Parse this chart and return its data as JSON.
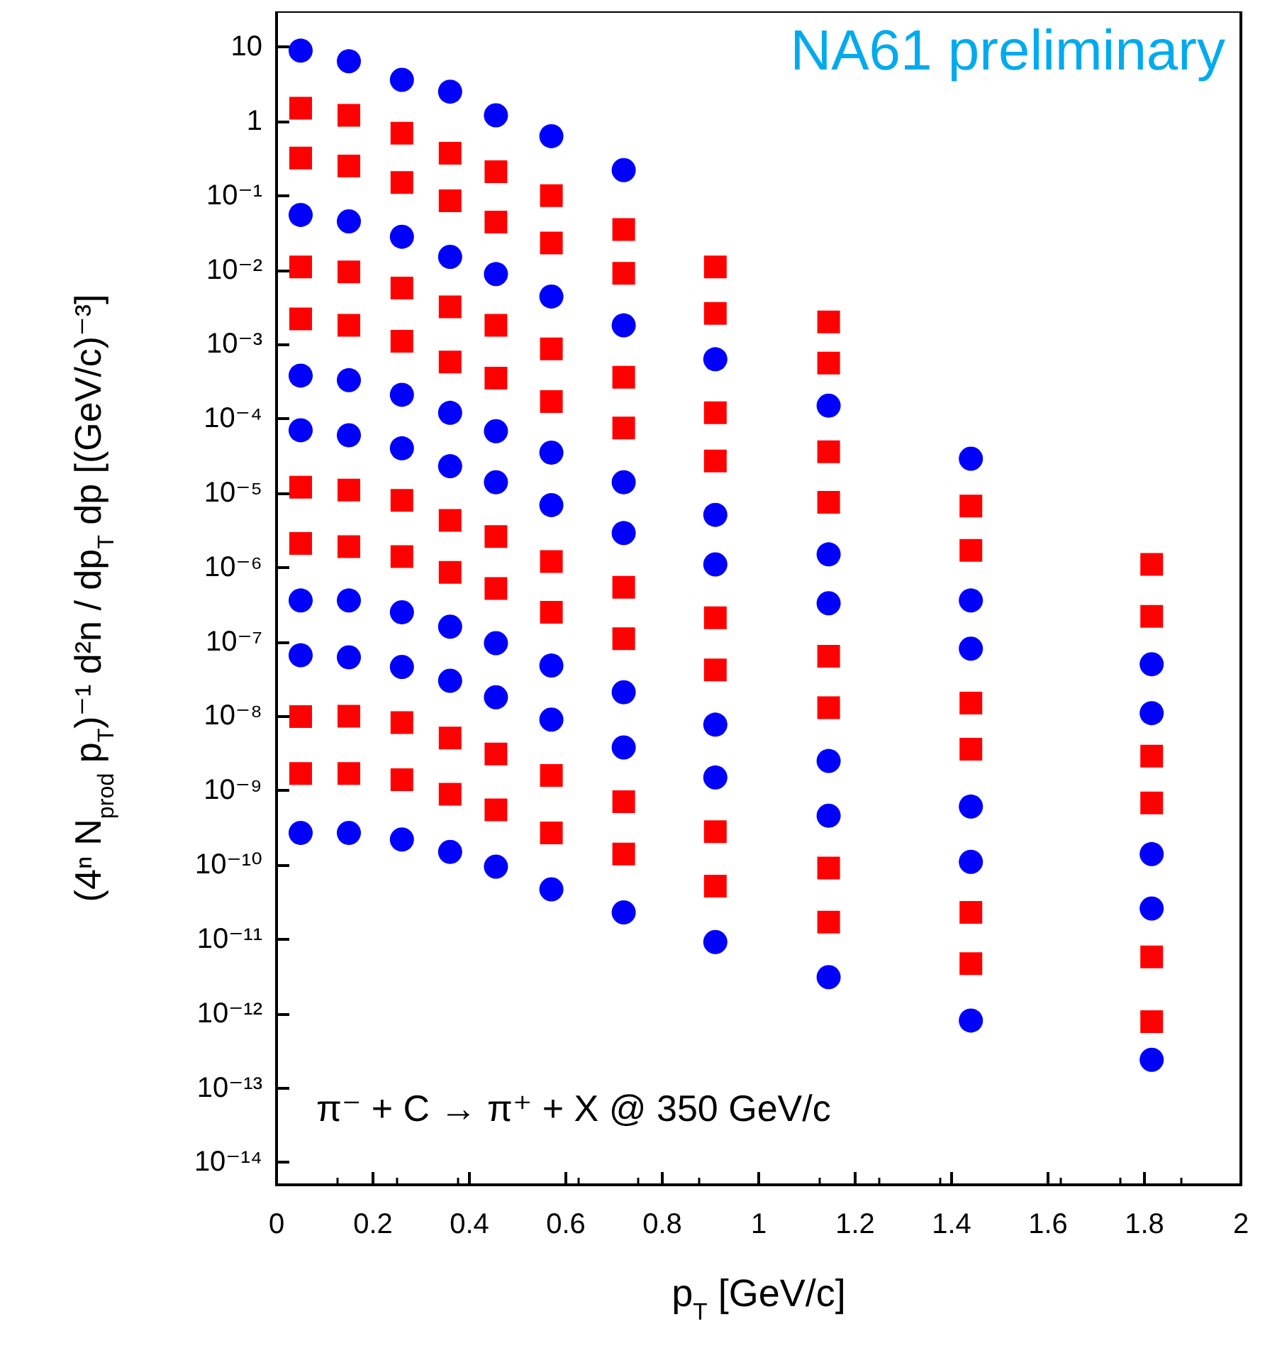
{
  "chart_data": {
    "type": "scatter",
    "xlabel": "p$_{T}$ [GeV/c]",
    "ylabel": "(4ⁿ N$_{prod}$ p$_{T}$)⁻¹ d²n / dp$_{T}$ dp [(GeV/c)⁻³]",
    "annotations": [
      "NA61 preliminary",
      "π⁻ + C → π⁺ + X @ 350 GeV/c"
    ],
    "x": [
      0.05,
      0.15,
      0.26,
      0.36,
      0.455,
      0.57,
      0.72,
      0.91,
      1.145,
      1.44,
      1.815
    ],
    "series": [
      {
        "color": "#0000ff",
        "marker": "circle",
        "values": [
          8.9,
          6.4,
          3.6,
          2.5,
          1.2,
          0.63,
          0.22,
          null,
          null,
          null,
          null
        ]
      },
      {
        "color": "#ff0000",
        "marker": "square",
        "values": [
          1.5,
          1.2,
          0.69,
          0.37,
          0.21,
          0.1,
          0.035,
          0.011,
          0.002,
          null,
          null
        ]
      },
      {
        "color": "#ff0000",
        "marker": "square",
        "values": [
          0.32,
          0.25,
          0.15,
          0.085,
          0.044,
          0.023,
          0.009,
          0.0026,
          0.00056,
          null,
          null
        ]
      },
      {
        "color": "#0000ff",
        "marker": "circle",
        "values": [
          0.055,
          0.045,
          0.028,
          0.015,
          0.0088,
          0.0044,
          0.0018,
          0.00063,
          0.00015,
          2.9e-05,
          null
        ]
      },
      {
        "color": "#ff0000",
        "marker": "square",
        "values": [
          0.011,
          0.0094,
          0.0057,
          0.0032,
          0.0018,
          0.00087,
          0.00036,
          0.00012,
          3.6e-05,
          6.7e-06,
          1.1e-06
        ]
      },
      {
        "color": "#ff0000",
        "marker": "square",
        "values": [
          0.0022,
          0.0018,
          0.0011,
          0.00058,
          0.00035,
          0.00017,
          7.5e-05,
          2.7e-05,
          7.5e-06,
          1.7e-06,
          2.2e-07
        ]
      },
      {
        "color": "#0000ff",
        "marker": "circle",
        "values": [
          0.00038,
          0.00033,
          0.00021,
          0.00012,
          6.8e-05,
          3.5e-05,
          1.4e-05,
          5.1e-06,
          1.5e-06,
          3.6e-07,
          5e-08
        ]
      },
      {
        "color": "#0000ff",
        "marker": "circle",
        "values": [
          7e-05,
          6e-05,
          4e-05,
          2.3e-05,
          1.4e-05,
          6.9e-06,
          2.9e-06,
          1.1e-06,
          3.3e-07,
          8.1e-08,
          1.1e-08
        ]
      },
      {
        "color": "#ff0000",
        "marker": "square",
        "values": [
          1.2e-05,
          1.1e-05,
          8e-06,
          4.3e-06,
          2.6e-06,
          1.2e-06,
          5.4e-07,
          2.1e-07,
          6.4e-08,
          1.5e-08,
          2.9e-09
        ]
      },
      {
        "color": "#ff0000",
        "marker": "square",
        "values": [
          2.1e-06,
          1.9e-06,
          1.4e-06,
          8.6e-07,
          5.2e-07,
          2.5e-07,
          1.1e-07,
          4.2e-08,
          1.3e-08,
          3.6e-09,
          6.8e-10
        ]
      },
      {
        "color": "#0000ff",
        "marker": "circle",
        "values": [
          3.6e-07,
          3.6e-07,
          2.5e-07,
          1.6e-07,
          9.6e-08,
          4.8e-08,
          2.1e-08,
          7.7e-09,
          2.5e-09,
          6.1e-10,
          1.4e-10
        ]
      },
      {
        "color": "#0000ff",
        "marker": "circle",
        "values": [
          6.6e-08,
          6.2e-08,
          4.6e-08,
          3e-08,
          1.8e-08,
          9e-09,
          3.8e-09,
          1.5e-09,
          4.6e-10,
          1.1e-10,
          2.6e-11
        ]
      },
      {
        "color": "#ff0000",
        "marker": "square",
        "values": [
          9.9e-09,
          1e-08,
          8.2e-09,
          5.1e-09,
          3.1e-09,
          1.6e-09,
          7.1e-10,
          2.8e-10,
          9.1e-11,
          2.3e-11,
          5.8e-12
        ]
      },
      {
        "color": "#ff0000",
        "marker": "square",
        "values": [
          1.7e-09,
          1.7e-09,
          1.4e-09,
          8.9e-10,
          5.5e-10,
          2.7e-10,
          1.4e-10,
          5.2e-11,
          1.7e-11,
          4.7e-12,
          7.8e-13
        ]
      },
      {
        "color": "#0000ff",
        "marker": "circle",
        "values": [
          2.7e-10,
          2.7e-10,
          2.2e-10,
          1.5e-10,
          9.5e-11,
          4.7e-11,
          2.3e-11,
          9.2e-12,
          3.1e-12,
          8.1e-13,
          2.4e-13
        ]
      }
    ],
    "log": "y",
    "xlim": [
      0,
      2
    ],
    "xticks": [
      0,
      0.2,
      0.4,
      0.6,
      0.8,
      1,
      1.2,
      1.4,
      1.6,
      1.8,
      2
    ],
    "ylim": [
      5e-15,
      30
    ],
    "yticks": [
      {
        "value": 1e-14,
        "label": "10⁻¹⁴"
      },
      {
        "value": 1e-13,
        "label": "10⁻¹³"
      },
      {
        "value": 1e-12,
        "label": "10⁻¹²"
      },
      {
        "value": 1e-11,
        "label": "10⁻¹¹"
      },
      {
        "value": 1e-10,
        "label": "10⁻¹⁰"
      },
      {
        "value": 1e-09,
        "label": "10⁻⁹"
      },
      {
        "value": 1e-08,
        "label": "10⁻⁸"
      },
      {
        "value": 1e-07,
        "label": "10⁻⁷"
      },
      {
        "value": 1e-06,
        "label": "10⁻⁶"
      },
      {
        "value": 1e-05,
        "label": "10⁻⁵"
      },
      {
        "value": 0.0001,
        "label": "10⁻⁴"
      },
      {
        "value": 0.001,
        "label": "10⁻³"
      },
      {
        "value": 0.01,
        "label": "10⁻²"
      },
      {
        "value": 0.1,
        "label": "10⁻¹"
      },
      1,
      10
    ]
  }
}
